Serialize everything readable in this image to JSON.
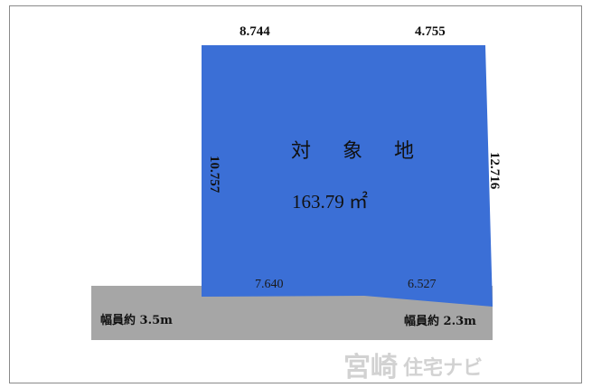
{
  "plot": {
    "top_left_dimension": "8.744",
    "top_right_dimension": "4.755",
    "left_dimension": "10.757",
    "right_dimension": "12.716",
    "bottom_left_dimension": "7.640",
    "bottom_right_dimension": "6.527",
    "title": "対 象 地",
    "area": "163.79 ㎡",
    "lot_color": "#3b6fd6",
    "road_color": "#a6a6a6"
  },
  "roads": {
    "left_label": "幅員約 3.5m",
    "right_label": "幅員約 2.3m"
  },
  "watermark": {
    "brand_main": "宮崎",
    "brand_sub": "住宅ナビ"
  }
}
